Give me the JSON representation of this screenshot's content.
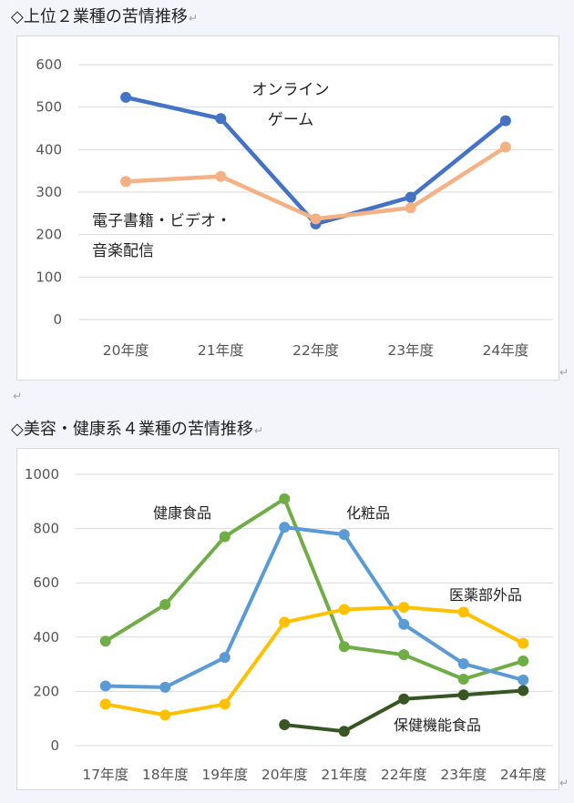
{
  "heading1": "◇上位２業種の苦情推移",
  "heading2": "◇美容・健康系４業種の苦情推移",
  "paragraph_mark": "↵",
  "charts": [
    {
      "type": "line",
      "categories": [
        "20年度",
        "21年度",
        "22年度",
        "23年度",
        "24年度"
      ],
      "ylim": [
        0,
        600
      ],
      "yticks": [
        0,
        100,
        200,
        300,
        400,
        500,
        600
      ],
      "grid": true,
      "series": [
        {
          "name": "オンラインゲーム",
          "color": "#4472c4",
          "values": [
            523,
            473,
            225,
            288,
            468
          ]
        },
        {
          "name": "電子書籍・ビデオ・音楽配信",
          "color": "#f4b183",
          "values": [
            325,
            337,
            237,
            263,
            406
          ]
        }
      ],
      "annotations": [
        {
          "series": 0,
          "lines": [
            "オンライン",
            "ゲーム"
          ]
        },
        {
          "series": 1,
          "lines": [
            "電子書籍・ビデオ・",
            "音楽配信"
          ]
        }
      ]
    },
    {
      "type": "line",
      "categories": [
        "17年度",
        "18年度",
        "19年度",
        "20年度",
        "21年度",
        "22年度",
        "23年度",
        "24年度"
      ],
      "ylim": [
        0,
        1000
      ],
      "yticks": [
        0,
        200,
        400,
        600,
        800,
        1000
      ],
      "grid": true,
      "series": [
        {
          "name": "健康食品",
          "color": "#70ad47",
          "values": [
            385,
            520,
            770,
            910,
            365,
            335,
            245,
            312
          ]
        },
        {
          "name": "化粧品",
          "color": "#5b9bd5",
          "values": [
            220,
            215,
            325,
            805,
            778,
            447,
            302,
            242
          ]
        },
        {
          "name": "医薬部外品",
          "color": "#ffc000",
          "values": [
            153,
            113,
            153,
            455,
            502,
            510,
            492,
            377
          ]
        },
        {
          "name": "保健機能食品",
          "color": "#375623",
          "values": [
            null,
            null,
            null,
            77,
            53,
            172,
            187,
            203
          ]
        }
      ],
      "annotations": [
        {
          "series": 0,
          "lines": [
            "健康食品"
          ]
        },
        {
          "series": 1,
          "lines": [
            "化粧品"
          ]
        },
        {
          "series": 2,
          "lines": [
            "医薬部外品"
          ]
        },
        {
          "series": 3,
          "lines": [
            "保健機能食品"
          ]
        }
      ]
    }
  ]
}
